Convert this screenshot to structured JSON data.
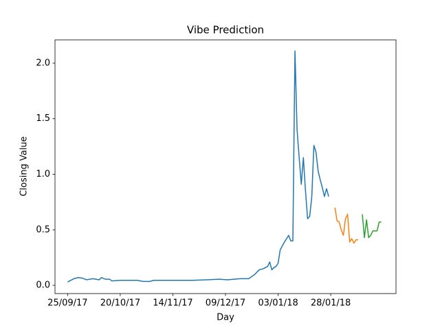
{
  "chart_data": {
    "type": "line",
    "title": "Vibe Prediction",
    "x_label": "Day",
    "y_label": "Closing Value",
    "xlim": [
      "2017-09-19",
      "2018-02-28"
    ],
    "xticks": [
      {
        "value": "2017-09-25",
        "label": "25/09/17"
      },
      {
        "value": "2017-10-20",
        "label": "20/10/17"
      },
      {
        "value": "2017-11-14",
        "label": "14/11/17"
      },
      {
        "value": "2017-12-09",
        "label": "09/12/17"
      },
      {
        "value": "2018-01-03",
        "label": "03/01/18"
      },
      {
        "value": "2018-01-28",
        "label": "28/01/18"
      }
    ],
    "ylim": [
      -0.074,
      2.21
    ],
    "yticks": [
      {
        "value": 0,
        "label": "0.0"
      },
      0.5,
      {
        "value": 1,
        "label": "1.0"
      },
      1.5,
      {
        "value": 2,
        "label": "2.0"
      }
    ],
    "grid": false,
    "series": [
      {
        "color": "#1f77b4",
        "x": [
          "2017-09-25",
          "2017-09-28",
          "2017-09-30",
          "2017-10-02",
          "2017-10-04",
          "2017-10-07",
          "2017-10-10",
          "2017-10-11",
          "2017-10-13",
          "2017-10-15",
          "2017-10-16",
          "2017-10-20",
          "2017-10-23",
          "2017-10-28",
          "2017-10-31",
          "2017-11-03",
          "2017-11-05",
          "2017-11-10",
          "2017-11-17",
          "2017-11-23",
          "2017-11-30",
          "2017-12-06",
          "2017-12-10",
          "2017-12-13",
          "2017-12-16",
          "2017-12-20",
          "2017-12-23",
          "2017-12-25",
          "2017-12-27",
          "2017-12-29",
          "2017-12-30",
          "2017-12-31",
          "2018-01-01",
          "2018-01-02",
          "2018-01-03",
          "2018-01-04",
          "2018-01-06",
          "2018-01-08",
          "2018-01-09",
          "2018-01-10",
          "2018-01-11",
          "2018-01-12",
          "2018-01-13",
          "2018-01-14",
          "2018-01-15",
          "2018-01-16",
          "2018-01-17",
          "2018-01-18",
          "2018-01-19",
          "2018-01-20",
          "2018-01-21",
          "2018-01-22",
          "2018-01-23",
          "2018-01-24",
          "2018-01-25",
          "2018-01-26",
          "2018-01-27"
        ],
        "values": [
          0.03,
          0.06,
          0.07,
          0.065,
          0.05,
          0.06,
          0.05,
          0.07,
          0.055,
          0.055,
          0.04,
          0.045,
          0.045,
          0.045,
          0.035,
          0.035,
          0.045,
          0.045,
          0.045,
          0.045,
          0.05,
          0.055,
          0.05,
          0.055,
          0.06,
          0.06,
          0.1,
          0.14,
          0.15,
          0.17,
          0.21,
          0.14,
          0.16,
          0.17,
          0.2,
          0.32,
          0.39,
          0.45,
          0.4,
          0.4,
          2.11,
          1.4,
          1.15,
          0.91,
          1.15,
          0.85,
          0.6,
          0.62,
          0.8,
          1.26,
          1.2,
          1.03,
          0.95,
          0.88,
          0.8,
          0.87,
          0.8
        ]
      },
      {
        "color": "#ff7f0e",
        "x": [
          "2018-01-30",
          "2018-01-31",
          "2018-02-01",
          "2018-02-02",
          "2018-02-03",
          "2018-02-04",
          "2018-02-05",
          "2018-02-06",
          "2018-02-07",
          "2018-02-08",
          "2018-02-09",
          "2018-02-10"
        ],
        "values": [
          0.7,
          0.58,
          0.57,
          0.5,
          0.45,
          0.6,
          0.64,
          0.39,
          0.42,
          0.38,
          0.41,
          0.41
        ]
      },
      {
        "color": "#2ca02c",
        "x": [
          "2018-02-12",
          "2018-02-13",
          "2018-02-14",
          "2018-02-15",
          "2018-02-16",
          "2018-02-17",
          "2018-02-18",
          "2018-02-19",
          "2018-02-20",
          "2018-02-21"
        ],
        "values": [
          0.64,
          0.43,
          0.59,
          0.43,
          0.45,
          0.49,
          0.49,
          0.49,
          0.57,
          0.57
        ]
      }
    ]
  }
}
